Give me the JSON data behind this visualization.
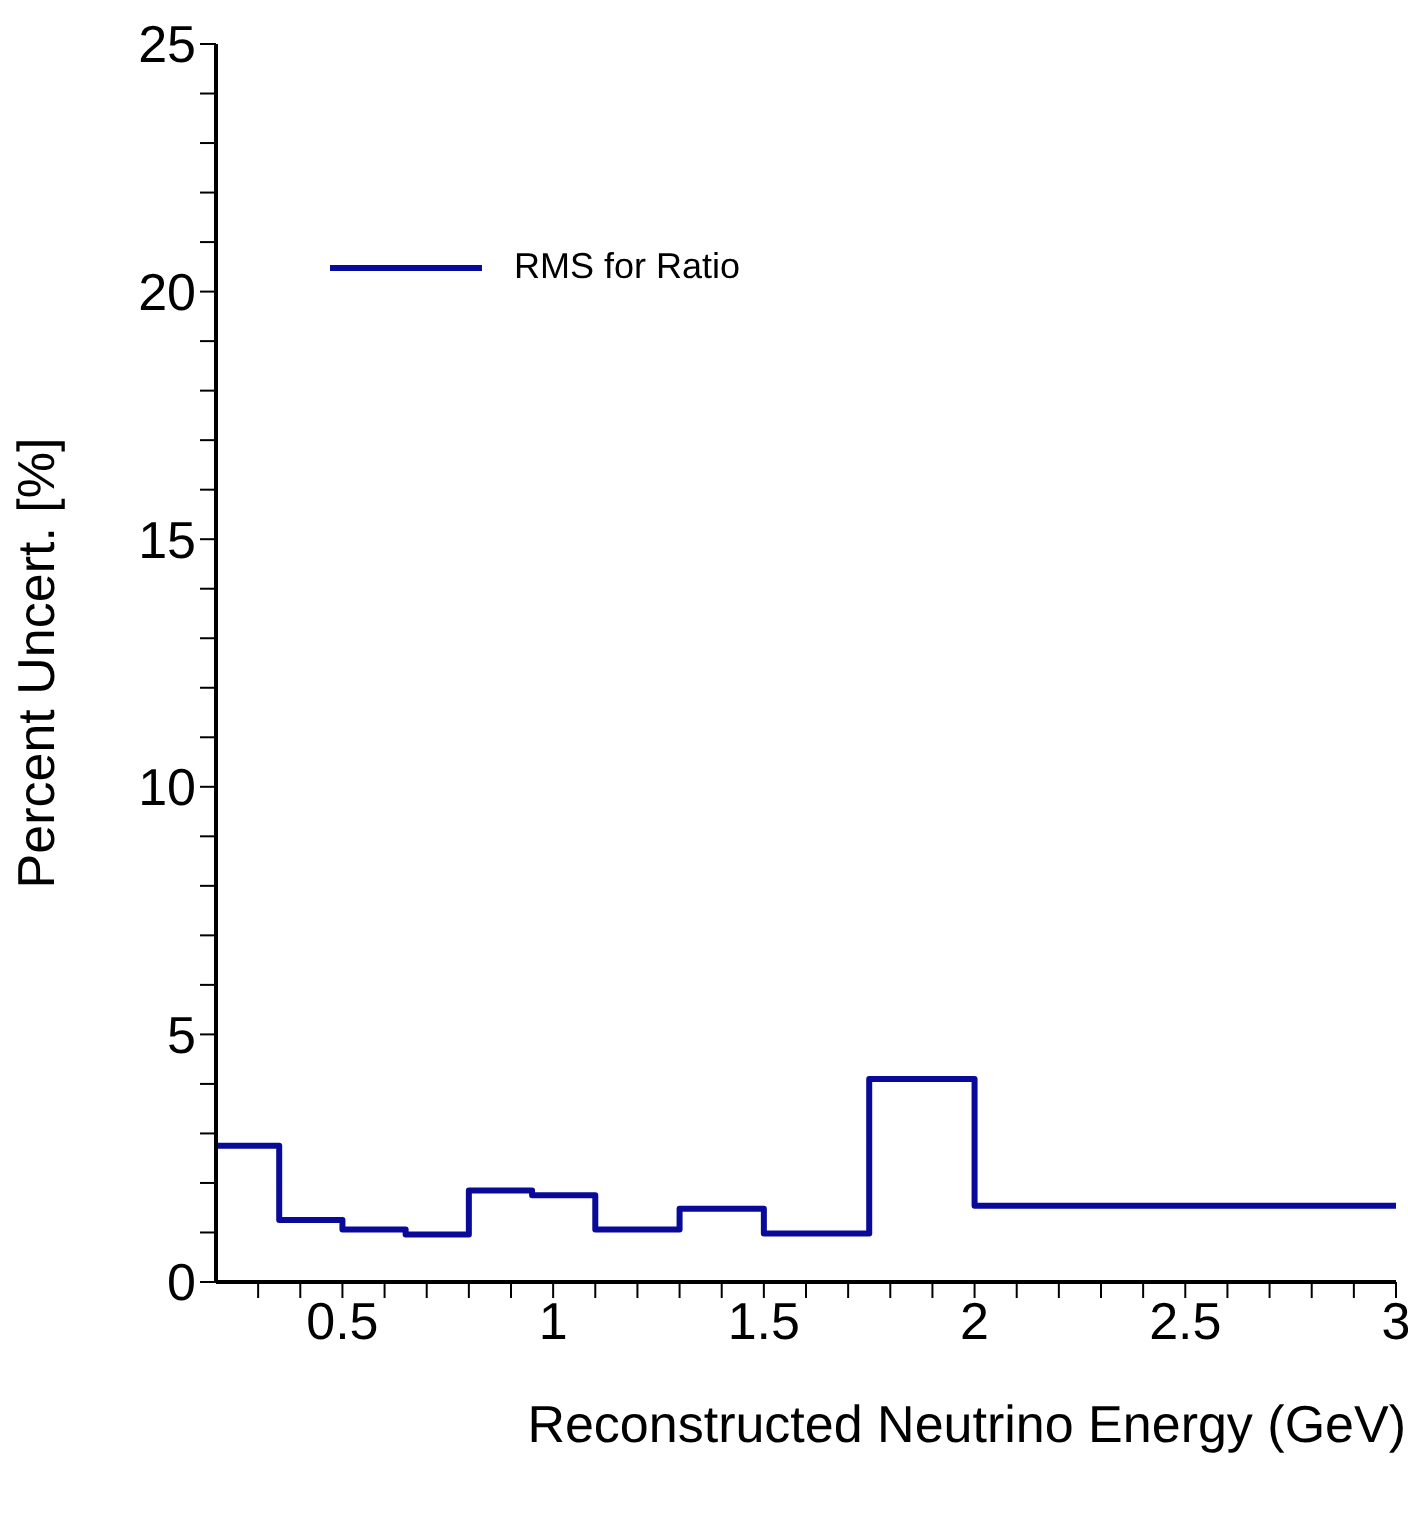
{
  "chart_data": {
    "type": "histogram",
    "xlabel": "Reconstructed Neutrino Energy (GeV)",
    "ylabel": "Percent Uncert. [%]",
    "bins": [
      0.2,
      0.35,
      0.5,
      0.65,
      0.8,
      0.95,
      1.1,
      1.3,
      1.5,
      1.75,
      2.0,
      3.0
    ],
    "series": [
      {
        "name": "RMS for Ratio",
        "color": "#0a0a9a",
        "values": [
          2.75,
          1.25,
          1.06,
          0.96,
          1.85,
          1.75,
          1.06,
          1.48,
          0.98,
          4.1,
          1.54
        ]
      }
    ],
    "xlim": [
      0.2,
      3
    ],
    "xticks": [
      {
        "value": 0.3,
        "label": null
      },
      {
        "value": 0.4,
        "label": null
      },
      0.5,
      {
        "value": 0.6,
        "label": null
      },
      {
        "value": 0.7,
        "label": null
      },
      {
        "value": 0.8,
        "label": null
      },
      {
        "value": 0.9,
        "label": null
      },
      1,
      {
        "value": 1.1,
        "label": null
      },
      {
        "value": 1.2,
        "label": null
      },
      {
        "value": 1.3,
        "label": null
      },
      {
        "value": 1.4,
        "label": null
      },
      1.5,
      {
        "value": 1.6,
        "label": null
      },
      {
        "value": 1.7,
        "label": null
      },
      {
        "value": 1.8,
        "label": null
      },
      {
        "value": 1.9,
        "label": null
      },
      2,
      {
        "value": 2.1,
        "label": null
      },
      {
        "value": 2.2,
        "label": null
      },
      {
        "value": 2.3,
        "label": null
      },
      {
        "value": 2.4,
        "label": null
      },
      2.5,
      {
        "value": 2.6,
        "label": null
      },
      {
        "value": 2.7,
        "label": null
      },
      {
        "value": 2.8,
        "label": null
      },
      {
        "value": 2.9,
        "label": null
      },
      3
    ],
    "ylim": [
      0,
      25
    ],
    "yticks": [
      0,
      {
        "value": 1,
        "label": null
      },
      {
        "value": 2,
        "label": null
      },
      {
        "value": 3,
        "label": null
      },
      {
        "value": 4,
        "label": null
      },
      5,
      {
        "value": 6,
        "label": null
      },
      {
        "value": 7,
        "label": null
      },
      {
        "value": 8,
        "label": null
      },
      {
        "value": 9,
        "label": null
      },
      10,
      {
        "value": 11,
        "label": null
      },
      {
        "value": 12,
        "label": null
      },
      {
        "value": 13,
        "label": null
      },
      {
        "value": 14,
        "label": null
      },
      15,
      {
        "value": 16,
        "label": null
      },
      {
        "value": 17,
        "label": null
      },
      {
        "value": 18,
        "label": null
      },
      {
        "value": 19,
        "label": null
      },
      20,
      {
        "value": 21,
        "label": null
      },
      {
        "value": 22,
        "label": null
      },
      {
        "value": 23,
        "label": null
      },
      {
        "value": 24,
        "label": null
      },
      25
    ],
    "legend": "top left"
  }
}
